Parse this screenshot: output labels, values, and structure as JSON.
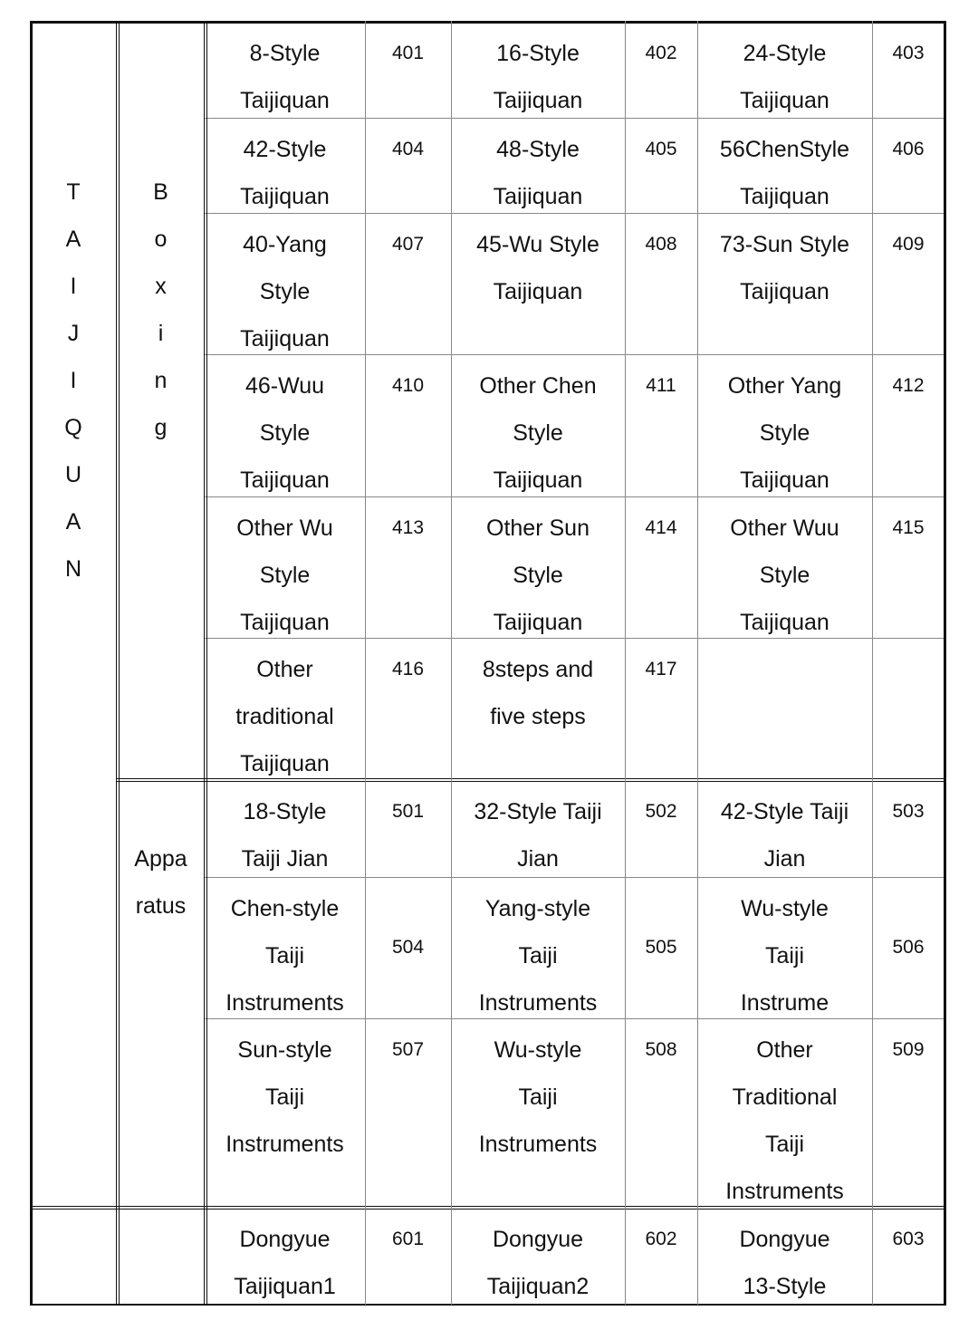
{
  "category": {
    "letters": [
      "T",
      "A",
      "I",
      "J",
      "I",
      "Q",
      "U",
      "A",
      "N"
    ]
  },
  "groups": [
    {
      "label_lines": [
        "B",
        "o",
        "x",
        "i",
        "n",
        "g"
      ]
    },
    {
      "label_lines": [
        "Appa",
        "ratus"
      ]
    },
    {
      "label_lines": []
    }
  ],
  "rows": [
    {
      "cells": [
        {
          "name": [
            "8-Style",
            "Taijiquan"
          ],
          "code": "401"
        },
        {
          "name": [
            "16-Style",
            "Taijiquan"
          ],
          "code": "402"
        },
        {
          "name": [
            "24-Style",
            "Taijiquan"
          ],
          "code": "403"
        }
      ]
    },
    {
      "cells": [
        {
          "name": [
            "42-Style",
            "Taijiquan"
          ],
          "code": "404"
        },
        {
          "name": [
            "48-Style",
            "Taijiquan"
          ],
          "code": "405"
        },
        {
          "name": [
            "56ChenStyle",
            "Taijiquan"
          ],
          "code": "406"
        }
      ]
    },
    {
      "cells": [
        {
          "name": [
            "40-Yang",
            "Style",
            "Taijiquan"
          ],
          "code": "407"
        },
        {
          "name": [
            "45-Wu Style",
            "Taijiquan"
          ],
          "code": "408"
        },
        {
          "name": [
            "73-Sun Style",
            "Taijiquan"
          ],
          "code": "409"
        }
      ]
    },
    {
      "cells": [
        {
          "name": [
            "46-Wuu",
            "Style",
            "Taijiquan"
          ],
          "code": "410"
        },
        {
          "name": [
            "Other Chen",
            "Style",
            "Taijiquan"
          ],
          "code": "411"
        },
        {
          "name": [
            "Other Yang",
            "Style",
            "Taijiquan"
          ],
          "code": "412"
        }
      ]
    },
    {
      "cells": [
        {
          "name": [
            "Other Wu",
            "Style",
            "Taijiquan"
          ],
          "code": "413"
        },
        {
          "name": [
            "Other Sun",
            "Style",
            "Taijiquan"
          ],
          "code": "414"
        },
        {
          "name": [
            "Other Wuu",
            "Style",
            "Taijiquan"
          ],
          "code": "415"
        }
      ]
    },
    {
      "cells": [
        {
          "name": [
            "Other",
            "traditional",
            "Taijiquan"
          ],
          "code": "416"
        },
        {
          "name": [
            "8steps and",
            "five steps"
          ],
          "code": "417"
        },
        {
          "name": [],
          "code": ""
        }
      ]
    },
    {
      "cells": [
        {
          "name": [
            "18-Style",
            "Taiji Jian"
          ],
          "code": "501"
        },
        {
          "name": [
            "32-Style Taiji",
            "Jian"
          ],
          "code": "502"
        },
        {
          "name": [
            "42-Style Taiji",
            "Jian"
          ],
          "code": "503"
        }
      ]
    },
    {
      "cells": [
        {
          "name": [
            "Chen-style",
            "Taiji",
            "Instruments"
          ],
          "code": "504"
        },
        {
          "name": [
            "Yang-style",
            "Taiji",
            "Instruments"
          ],
          "code": "505"
        },
        {
          "name": [
            "Wu-style",
            "Taiji",
            "Instrume"
          ],
          "code": "506"
        }
      ]
    },
    {
      "cells": [
        {
          "name": [
            "Sun-style",
            "Taiji",
            "Instruments"
          ],
          "code": "507"
        },
        {
          "name": [
            "Wu-style",
            "Taiji",
            "Instruments"
          ],
          "code": "508"
        },
        {
          "name": [
            "Other",
            "Traditional",
            "Taiji",
            "Instruments"
          ],
          "code": "509"
        }
      ]
    },
    {
      "cells": [
        {
          "name": [
            "Dongyue",
            "Taijiquan1"
          ],
          "code": "601"
        },
        {
          "name": [
            "Dongyue",
            "Taijiquan2"
          ],
          "code": "602"
        },
        {
          "name": [
            "Dongyue",
            "13-Style"
          ],
          "code": "603"
        }
      ]
    }
  ]
}
